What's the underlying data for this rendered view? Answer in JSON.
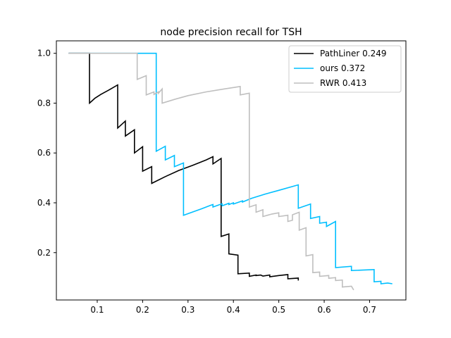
{
  "chart_data": {
    "type": "line",
    "title": "node precision recall for TSH",
    "xlabel": "",
    "ylabel": "",
    "xlim": [
      0.01,
      0.78
    ],
    "ylim": [
      0.01,
      1.05
    ],
    "xticks": [
      0.1,
      0.2,
      0.3,
      0.4,
      0.5,
      0.6,
      0.7
    ],
    "xtick_labels": [
      "0.1",
      "0.2",
      "0.3",
      "0.4",
      "0.5",
      "0.6",
      "0.7"
    ],
    "yticks": [
      0.2,
      0.4,
      0.6,
      0.8,
      1.0
    ],
    "ytick_labels": [
      "0.2",
      "0.4",
      "0.6",
      "0.8",
      "1.0"
    ],
    "grid": false,
    "legend_position": "upper-right",
    "series": [
      {
        "name": "PathLiner 0.249",
        "color": "#000000",
        "points": [
          [
            0.037,
            1.0
          ],
          [
            0.083,
            1.0
          ],
          [
            0.083,
            0.8
          ],
          [
            0.095,
            0.82
          ],
          [
            0.108,
            0.835
          ],
          [
            0.125,
            0.852
          ],
          [
            0.145,
            0.873
          ],
          [
            0.145,
            0.7
          ],
          [
            0.162,
            0.728
          ],
          [
            0.162,
            0.668
          ],
          [
            0.182,
            0.693
          ],
          [
            0.182,
            0.6
          ],
          [
            0.2,
            0.625
          ],
          [
            0.2,
            0.527
          ],
          [
            0.22,
            0.545
          ],
          [
            0.22,
            0.478
          ],
          [
            0.25,
            0.505
          ],
          [
            0.28,
            0.53
          ],
          [
            0.31,
            0.55
          ],
          [
            0.34,
            0.572
          ],
          [
            0.355,
            0.585
          ],
          [
            0.355,
            0.556
          ],
          [
            0.373,
            0.578
          ],
          [
            0.373,
            0.265
          ],
          [
            0.39,
            0.275
          ],
          [
            0.39,
            0.195
          ],
          [
            0.41,
            0.19
          ],
          [
            0.41,
            0.115
          ],
          [
            0.435,
            0.118
          ],
          [
            0.435,
            0.105
          ],
          [
            0.45,
            0.11
          ],
          [
            0.45,
            0.108
          ],
          [
            0.46,
            0.11
          ],
          [
            0.465,
            0.106
          ],
          [
            0.48,
            0.11
          ],
          [
            0.48,
            0.103
          ],
          [
            0.5,
            0.108
          ],
          [
            0.52,
            0.112
          ],
          [
            0.52,
            0.095
          ],
          [
            0.543,
            0.098
          ],
          [
            0.543,
            0.088
          ]
        ]
      },
      {
        "name": "ours 0.372",
        "color": "#00bfff",
        "points": [
          [
            0.037,
            1.0
          ],
          [
            0.23,
            1.0
          ],
          [
            0.23,
            0.607
          ],
          [
            0.25,
            0.627
          ],
          [
            0.25,
            0.572
          ],
          [
            0.27,
            0.59
          ],
          [
            0.27,
            0.545
          ],
          [
            0.29,
            0.56
          ],
          [
            0.29,
            0.35
          ],
          [
            0.31,
            0.363
          ],
          [
            0.33,
            0.376
          ],
          [
            0.35,
            0.39
          ],
          [
            0.355,
            0.393
          ],
          [
            0.355,
            0.383
          ],
          [
            0.375,
            0.396
          ],
          [
            0.375,
            0.388
          ],
          [
            0.39,
            0.398
          ],
          [
            0.39,
            0.393
          ],
          [
            0.4,
            0.4
          ],
          [
            0.4,
            0.395
          ],
          [
            0.42,
            0.408
          ],
          [
            0.42,
            0.403
          ],
          [
            0.44,
            0.418
          ],
          [
            0.47,
            0.435
          ],
          [
            0.5,
            0.45
          ],
          [
            0.543,
            0.472
          ],
          [
            0.543,
            0.378
          ],
          [
            0.57,
            0.395
          ],
          [
            0.57,
            0.337
          ],
          [
            0.59,
            0.345
          ],
          [
            0.59,
            0.318
          ],
          [
            0.605,
            0.322
          ],
          [
            0.605,
            0.305
          ],
          [
            0.625,
            0.325
          ],
          [
            0.625,
            0.14
          ],
          [
            0.66,
            0.145
          ],
          [
            0.66,
            0.128
          ],
          [
            0.71,
            0.132
          ],
          [
            0.71,
            0.083
          ],
          [
            0.725,
            0.085
          ],
          [
            0.725,
            0.075
          ],
          [
            0.74,
            0.078
          ],
          [
            0.75,
            0.075
          ]
        ]
      },
      {
        "name": "RWR 0.413",
        "color": "#bfbfbf",
        "points": [
          [
            0.037,
            1.0
          ],
          [
            0.188,
            1.0
          ],
          [
            0.188,
            0.895
          ],
          [
            0.208,
            0.91
          ],
          [
            0.208,
            0.833
          ],
          [
            0.225,
            0.845
          ],
          [
            0.225,
            0.835
          ],
          [
            0.235,
            0.845
          ],
          [
            0.235,
            0.84
          ],
          [
            0.243,
            0.857
          ],
          [
            0.243,
            0.8
          ],
          [
            0.27,
            0.815
          ],
          [
            0.3,
            0.83
          ],
          [
            0.34,
            0.845
          ],
          [
            0.38,
            0.857
          ],
          [
            0.415,
            0.867
          ],
          [
            0.415,
            0.833
          ],
          [
            0.435,
            0.84
          ],
          [
            0.435,
            0.383
          ],
          [
            0.45,
            0.392
          ],
          [
            0.45,
            0.362
          ],
          [
            0.465,
            0.372
          ],
          [
            0.465,
            0.345
          ],
          [
            0.485,
            0.355
          ],
          [
            0.5,
            0.36
          ],
          [
            0.5,
            0.345
          ],
          [
            0.52,
            0.35
          ],
          [
            0.52,
            0.325
          ],
          [
            0.53,
            0.33
          ],
          [
            0.53,
            0.352
          ],
          [
            0.545,
            0.362
          ],
          [
            0.545,
            0.29
          ],
          [
            0.56,
            0.3
          ],
          [
            0.56,
            0.187
          ],
          [
            0.575,
            0.192
          ],
          [
            0.575,
            0.12
          ],
          [
            0.59,
            0.122
          ],
          [
            0.59,
            0.105
          ],
          [
            0.61,
            0.108
          ],
          [
            0.61,
            0.097
          ],
          [
            0.625,
            0.1
          ],
          [
            0.625,
            0.088
          ],
          [
            0.64,
            0.09
          ],
          [
            0.64,
            0.062
          ],
          [
            0.66,
            0.065
          ],
          [
            0.665,
            0.05
          ]
        ]
      }
    ]
  }
}
